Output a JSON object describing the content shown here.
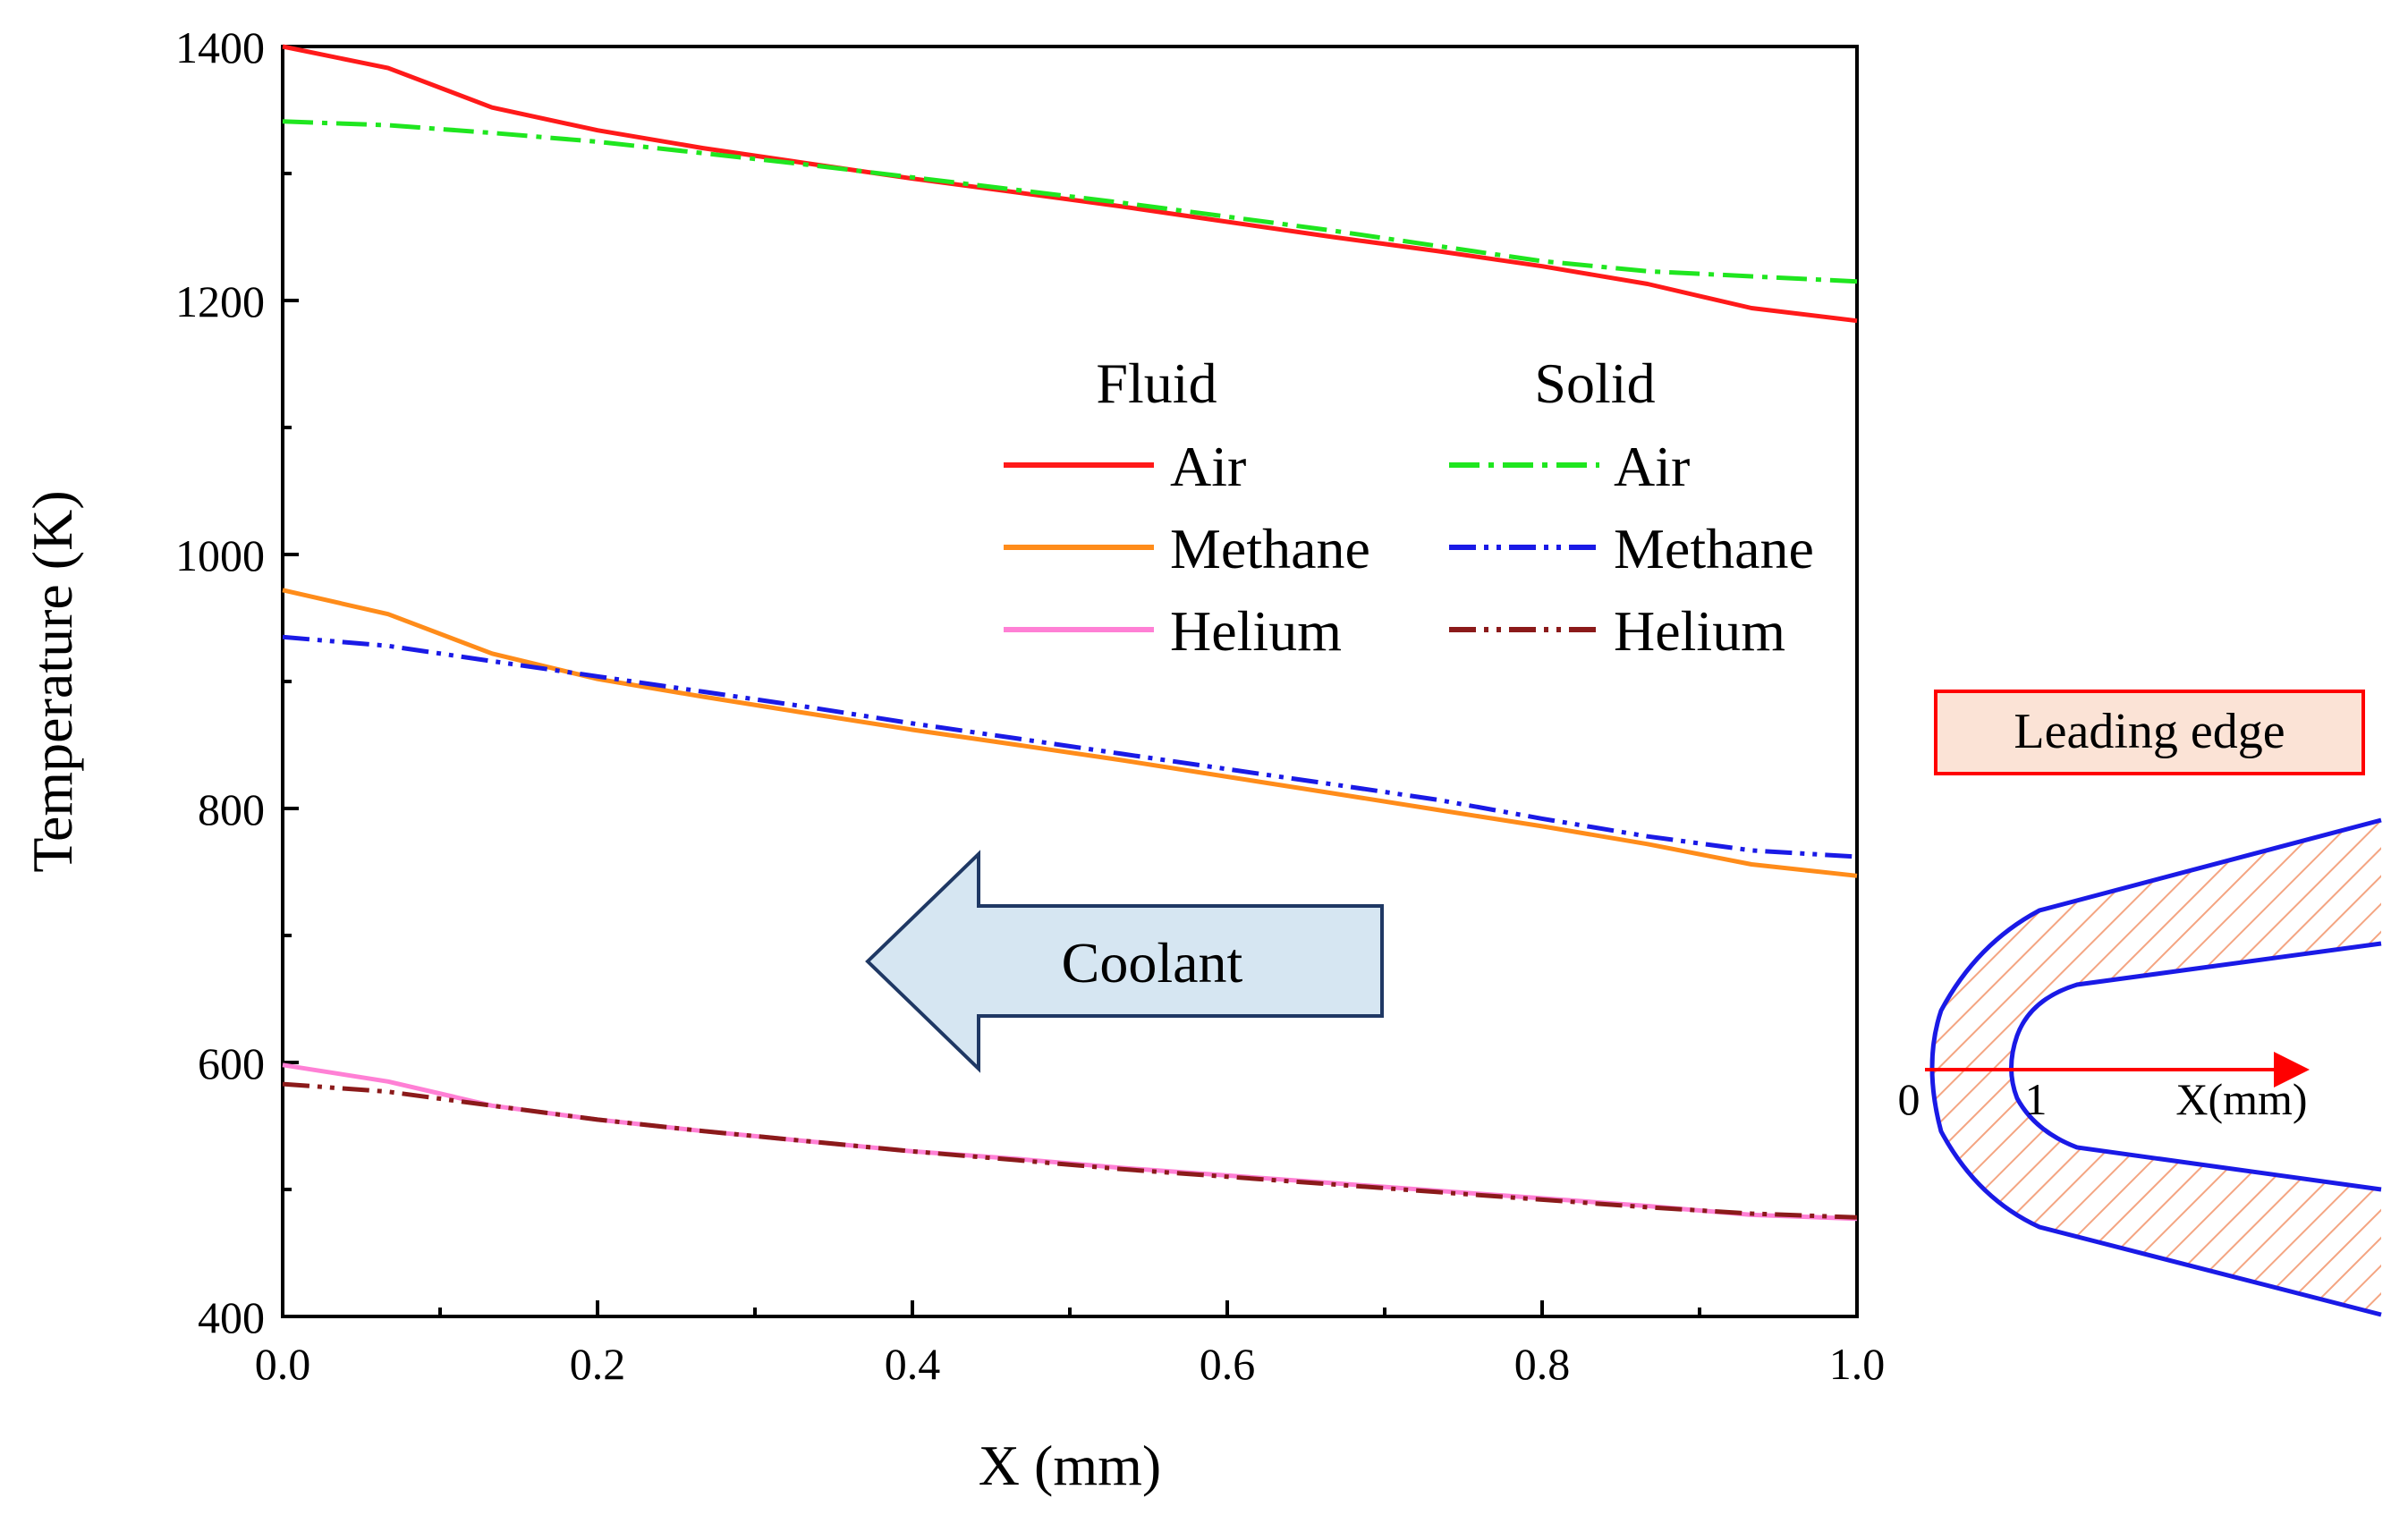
{
  "chart_data": {
    "type": "line",
    "title": "",
    "xlabel": "X (mm)",
    "ylabel": "Temperature (K)",
    "xlim": [
      0.0,
      1.0
    ],
    "ylim": [
      400,
      1400
    ],
    "xticks": [
      "0.0",
      "0.2",
      "0.4",
      "0.6",
      "0.8",
      "1.0"
    ],
    "yticks": [
      "400",
      "600",
      "800",
      "1000",
      "1200",
      "1400"
    ],
    "legend": {
      "fluid_header": "Fluid",
      "solid_header": "Solid",
      "position": "top-right"
    },
    "x": [
      0.0,
      0.067,
      0.133,
      0.2,
      0.267,
      0.333,
      0.4,
      0.467,
      0.533,
      0.6,
      0.667,
      0.733,
      0.8,
      0.867,
      0.933,
      1.0
    ],
    "series": [
      {
        "name": "Air",
        "group": "Fluid",
        "color": "#ff1a1a",
        "dash": "solid",
        "values": [
          1400,
          1383,
          1352,
          1334,
          1320,
          1308,
          1296,
          1285,
          1274,
          1262,
          1250,
          1239,
          1227,
          1213,
          1194,
          1184
        ]
      },
      {
        "name": "Methane",
        "group": "Fluid",
        "color": "#ff8c1a",
        "dash": "solid",
        "values": [
          972,
          953,
          922,
          902,
          888,
          875,
          862,
          850,
          838,
          825,
          812,
          799,
          786,
          772,
          756,
          747
        ]
      },
      {
        "name": "Helium",
        "group": "Fluid",
        "color": "#ff80d5",
        "dash": "solid",
        "values": [
          598,
          585,
          566,
          555,
          546,
          538,
          530,
          524,
          517,
          511,
          505,
          499,
          493,
          487,
          480,
          477
        ]
      },
      {
        "name": "Air",
        "group": "Solid",
        "color": "#1fe61f",
        "dash": "dashdot",
        "values": [
          1341,
          1338,
          1332,
          1325,
          1316,
          1307,
          1297,
          1287,
          1277,
          1266,
          1255,
          1243,
          1231,
          1223,
          1219,
          1215
        ]
      },
      {
        "name": "Methane",
        "group": "Solid",
        "color": "#1a1ae6",
        "dash": "dashdotdot",
        "values": [
          935,
          928,
          916,
          904,
          892,
          880,
          867,
          855,
          843,
          831,
          819,
          807,
          792,
          778,
          767,
          762
        ]
      },
      {
        "name": "Helium",
        "group": "Solid",
        "color": "#8b1a1a",
        "dash": "dashdotdot",
        "values": [
          583,
          577,
          566,
          555,
          546,
          538,
          530,
          523,
          516,
          510,
          504,
          498,
          492,
          486,
          481,
          478
        ]
      }
    ],
    "annotations": {
      "arrow_label": "Coolant",
      "inset_title": "Leading edge",
      "inset_origin": "0",
      "inset_tick": "1",
      "inset_axis": "X(mm)"
    }
  },
  "colors": {
    "arrow_fill": "#d6e6f2",
    "arrow_stroke": "#1f3864",
    "inset_box_fill": "#fbe3d6",
    "inset_box_stroke": "#ff0000",
    "inset_outline": "#1a1ae6",
    "inset_hatch": "#f4a582",
    "inset_axis": "#ff0000"
  }
}
